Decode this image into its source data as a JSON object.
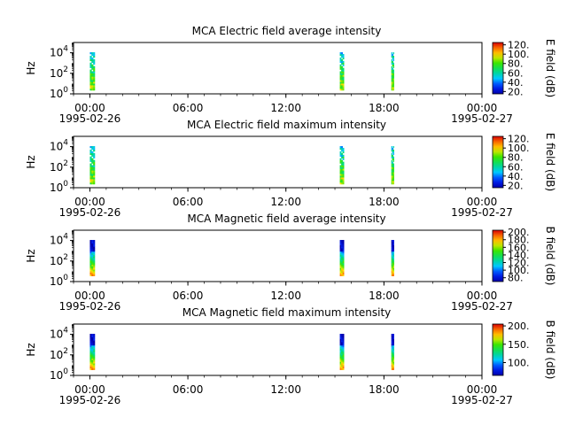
{
  "chart_data": [
    {
      "type": "heatmap",
      "title": "MCA  Electric field average intensity",
      "ylabel": "Hz",
      "yscale": "log",
      "ylim": [
        1,
        100000
      ],
      "y_ticks": [
        {
          "base": "10",
          "exp": "0"
        },
        {
          "base": "10",
          "exp": "2"
        },
        {
          "base": "10",
          "exp": "4"
        }
      ],
      "xlim_hours": [
        -1,
        24
      ],
      "x_ticks": [
        {
          "hour": 0,
          "label": "00:00",
          "date": "1995-02-26"
        },
        {
          "hour": 6,
          "label": "06:00",
          "date": ""
        },
        {
          "hour": 12,
          "label": "12:00",
          "date": ""
        },
        {
          "hour": 18,
          "label": "18:00",
          "date": ""
        },
        {
          "hour": 24,
          "label": "00:00",
          "date": "1995-02-27"
        }
      ],
      "colorbar": {
        "label": "E field (dB)",
        "vmin": 15,
        "vmax": 125,
        "ticks": [
          "20.",
          "40.",
          "60.",
          "80.",
          "100.",
          "120."
        ],
        "tick_values": [
          20,
          40,
          60,
          80,
          100,
          120
        ]
      },
      "bursts": [
        {
          "start_hour": 0.0,
          "end_hour": 0.3
        },
        {
          "start_hour": 15.3,
          "end_hour": 15.55
        },
        {
          "start_hour": 18.45,
          "end_hour": 18.6
        }
      ],
      "fill": "sparse"
    },
    {
      "type": "heatmap",
      "title": "MCA  Electric field maximum intensity",
      "ylabel": "Hz",
      "yscale": "log",
      "ylim": [
        1,
        100000
      ],
      "y_ticks": [
        {
          "base": "10",
          "exp": "0"
        },
        {
          "base": "10",
          "exp": "2"
        },
        {
          "base": "10",
          "exp": "4"
        }
      ],
      "xlim_hours": [
        -1,
        24
      ],
      "x_ticks": [
        {
          "hour": 0,
          "label": "00:00",
          "date": "1995-02-26"
        },
        {
          "hour": 6,
          "label": "06:00",
          "date": ""
        },
        {
          "hour": 12,
          "label": "12:00",
          "date": ""
        },
        {
          "hour": 18,
          "label": "18:00",
          "date": ""
        },
        {
          "hour": 24,
          "label": "00:00",
          "date": "1995-02-27"
        }
      ],
      "colorbar": {
        "label": "E field (dB)",
        "vmin": 15,
        "vmax": 125,
        "ticks": [
          "20.",
          "40.",
          "60.",
          "80.",
          "100.",
          "120."
        ],
        "tick_values": [
          20,
          40,
          60,
          80,
          100,
          120
        ]
      },
      "bursts": [
        {
          "start_hour": 0.0,
          "end_hour": 0.3
        },
        {
          "start_hour": 15.3,
          "end_hour": 15.55
        },
        {
          "start_hour": 18.45,
          "end_hour": 18.6
        }
      ],
      "fill": "sparse"
    },
    {
      "type": "heatmap",
      "title": "MCA  Magnetic field average intensity",
      "ylabel": "Hz",
      "yscale": "log",
      "ylim": [
        1,
        100000
      ],
      "y_ticks": [
        {
          "base": "10",
          "exp": "0"
        },
        {
          "base": "10",
          "exp": "2"
        },
        {
          "base": "10",
          "exp": "4"
        }
      ],
      "xlim_hours": [
        -1,
        24
      ],
      "x_ticks": [
        {
          "hour": 0,
          "label": "00:00",
          "date": "1995-02-26"
        },
        {
          "hour": 6,
          "label": "06:00",
          "date": ""
        },
        {
          "hour": 12,
          "label": "12:00",
          "date": ""
        },
        {
          "hour": 18,
          "label": "18:00",
          "date": ""
        },
        {
          "hour": 24,
          "label": "00:00",
          "date": "1995-02-27"
        }
      ],
      "colorbar": {
        "label": "B field (dB)",
        "vmin": 70,
        "vmax": 205,
        "ticks": [
          "80.",
          "100.",
          "120.",
          "140.",
          "160.",
          "180.",
          "200."
        ],
        "tick_values": [
          80,
          100,
          120,
          140,
          160,
          180,
          200
        ]
      },
      "bursts": [
        {
          "start_hour": 0.0,
          "end_hour": 0.3
        },
        {
          "start_hour": 15.3,
          "end_hour": 15.55
        },
        {
          "start_hour": 18.45,
          "end_hour": 18.6
        }
      ],
      "fill": "dense"
    },
    {
      "type": "heatmap",
      "title": "MCA  Magnetic field maximum intensity",
      "ylabel": "Hz",
      "yscale": "log",
      "ylim": [
        1,
        100000
      ],
      "y_ticks": [
        {
          "base": "10",
          "exp": "0"
        },
        {
          "base": "10",
          "exp": "2"
        },
        {
          "base": "10",
          "exp": "4"
        }
      ],
      "xlim_hours": [
        -1,
        24
      ],
      "x_ticks": [
        {
          "hour": 0,
          "label": "00:00",
          "date": "1995-02-26"
        },
        {
          "hour": 6,
          "label": "06:00",
          "date": ""
        },
        {
          "hour": 12,
          "label": "12:00",
          "date": ""
        },
        {
          "hour": 18,
          "label": "18:00",
          "date": ""
        },
        {
          "hour": 24,
          "label": "00:00",
          "date": "1995-02-27"
        }
      ],
      "colorbar": {
        "label": "B field (dB)",
        "vmin": 65,
        "vmax": 205,
        "ticks": [
          "100.",
          "150.",
          "200."
        ],
        "tick_values": [
          100,
          150,
          200
        ]
      },
      "bursts": [
        {
          "start_hour": 0.0,
          "end_hour": 0.3
        },
        {
          "start_hour": 15.3,
          "end_hour": 15.55
        },
        {
          "start_hour": 18.45,
          "end_hour": 18.6
        }
      ],
      "fill": "dense"
    }
  ]
}
